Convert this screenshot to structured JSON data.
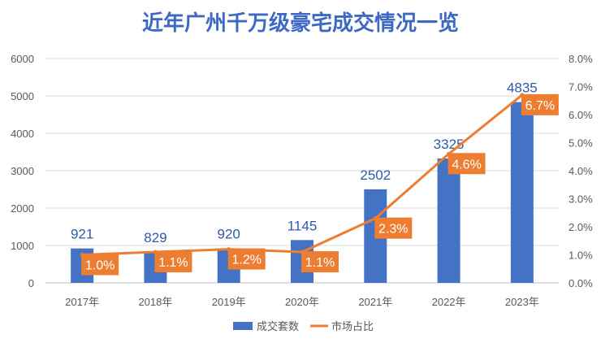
{
  "chart_data": {
    "type": "bar+line",
    "title": "近年广州千万级豪宅成交情况一览",
    "categories": [
      "2017年",
      "2018年",
      "2019年",
      "2020年",
      "2021年",
      "2022年",
      "2023年"
    ],
    "series": [
      {
        "name": "成交套数",
        "type": "bar",
        "axis": "left",
        "values": [
          921,
          829,
          920,
          1145,
          2502,
          3325,
          4835
        ],
        "labels": [
          "921",
          "829",
          "920",
          "1145",
          "2502",
          "3325",
          "4835"
        ]
      },
      {
        "name": "市场占比",
        "type": "line",
        "axis": "right",
        "values": [
          1.0,
          1.1,
          1.2,
          1.1,
          2.3,
          4.6,
          6.7
        ],
        "labels": [
          "1.0%",
          "1.1%",
          "1.2%",
          "1.1%",
          "2.3%",
          "4.6%",
          "6.7%"
        ]
      }
    ],
    "y_left": {
      "range": [
        0,
        6000
      ],
      "ticks": [
        0,
        1000,
        2000,
        3000,
        4000,
        5000,
        6000
      ],
      "tick_labels": [
        "0",
        "1000",
        "2000",
        "3000",
        "4000",
        "5000",
        "6000"
      ]
    },
    "y_right": {
      "range": [
        0,
        8
      ],
      "ticks": [
        0,
        1,
        2,
        3,
        4,
        5,
        6,
        7,
        8
      ],
      "tick_labels": [
        "0.0%",
        "1.0%",
        "2.0%",
        "3.0%",
        "4.0%",
        "5.0%",
        "6.0%",
        "7.0%",
        "8.0%"
      ]
    },
    "grid": true,
    "legend_position": "bottom",
    "colors": {
      "bar": "#4472C4",
      "line": "#ED7D31",
      "title": "#3D69C4",
      "bar_label": "#2E5AAC",
      "tick": "#595959",
      "grid": "#D9D9D9",
      "line_label_bg": "#ED7D31",
      "line_label_text": "#ffffff"
    }
  }
}
